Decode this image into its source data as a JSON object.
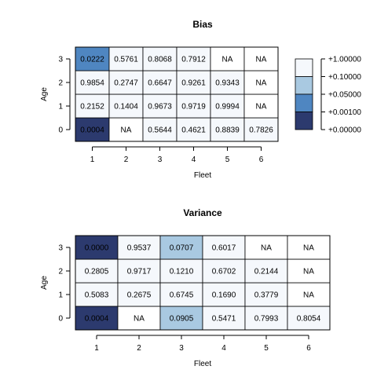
{
  "colors": {
    "lt_0.001": "#2C3A6E",
    "lt_0.05": "#4F86C1",
    "lt_0.1": "#A9C9E1",
    "lt_1": "#F5F8FC",
    "na": "#FFFFFF"
  },
  "chart_data": [
    {
      "type": "heatmap",
      "title": "Bias",
      "xlabel": "Fleet",
      "ylabel": "Age",
      "x_categories": [
        "1",
        "2",
        "3",
        "4",
        "5",
        "6"
      ],
      "y_categories": [
        "0",
        "1",
        "2",
        "3"
      ],
      "values": [
        [
          "0.0004",
          "NA",
          "0.5644",
          "0.4621",
          "0.8839",
          "0.7826"
        ],
        [
          "0.2152",
          "0.1404",
          "0.9673",
          "0.9719",
          "0.9994",
          "NA"
        ],
        [
          "0.9854",
          "0.2747",
          "0.6647",
          "0.9261",
          "0.9343",
          "NA"
        ],
        [
          "0.0222",
          "0.5761",
          "0.8068",
          "0.7912",
          "NA",
          "NA"
        ]
      ],
      "legend": {
        "placement": "right",
        "labels": [
          "+0.00000",
          "+0.00100",
          "+0.05000",
          "+0.10000",
          "+1.00000"
        ]
      }
    },
    {
      "type": "heatmap",
      "title": "Variance",
      "xlabel": "Fleet",
      "ylabel": "Age",
      "x_categories": [
        "1",
        "2",
        "3",
        "4",
        "5",
        "6"
      ],
      "y_categories": [
        "0",
        "1",
        "2",
        "3"
      ],
      "values": [
        [
          "0.0004",
          "NA",
          "0.0905",
          "0.5471",
          "0.7993",
          "0.8054"
        ],
        [
          "0.5083",
          "0.2675",
          "0.6745",
          "0.1690",
          "0.3779",
          "NA"
        ],
        [
          "0.2805",
          "0.9717",
          "0.1210",
          "0.6702",
          "0.2144",
          "NA"
        ],
        [
          "0.0000",
          "0.9537",
          "0.0707",
          "0.6017",
          "NA",
          "NA"
        ]
      ]
    }
  ]
}
